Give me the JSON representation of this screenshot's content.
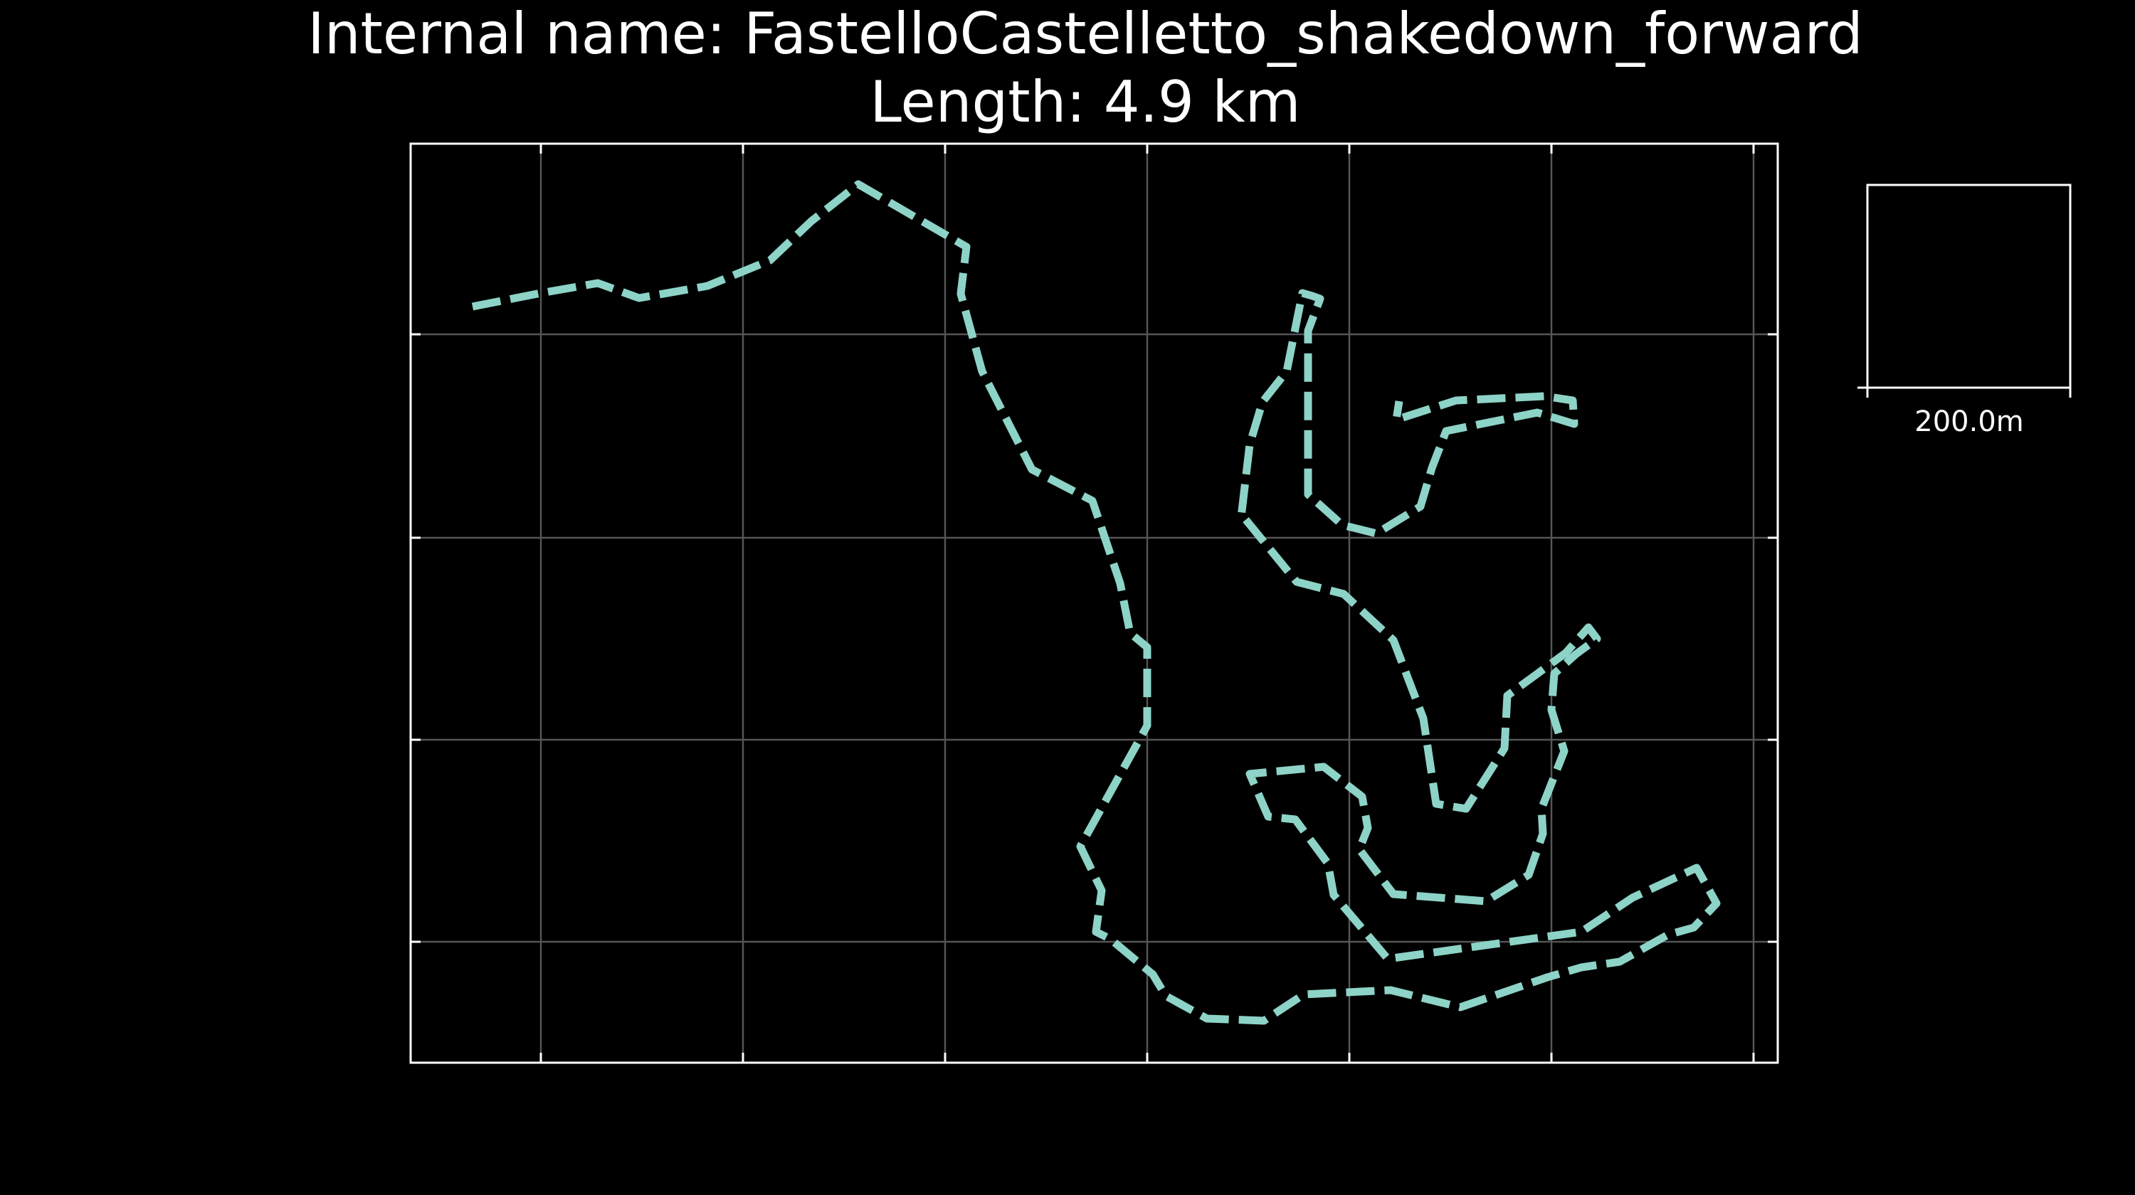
{
  "title": {
    "line1": "Internal name: FastelloCastelletto_shakedown_forward",
    "line2": "Length: 4.9 km"
  },
  "scale_bar": {
    "label": "200.0m"
  },
  "colors": {
    "background": "#000000",
    "track": "#8dd3c7",
    "frame": "#ffffff",
    "grid": "#555555"
  },
  "track_style": "dashed"
}
